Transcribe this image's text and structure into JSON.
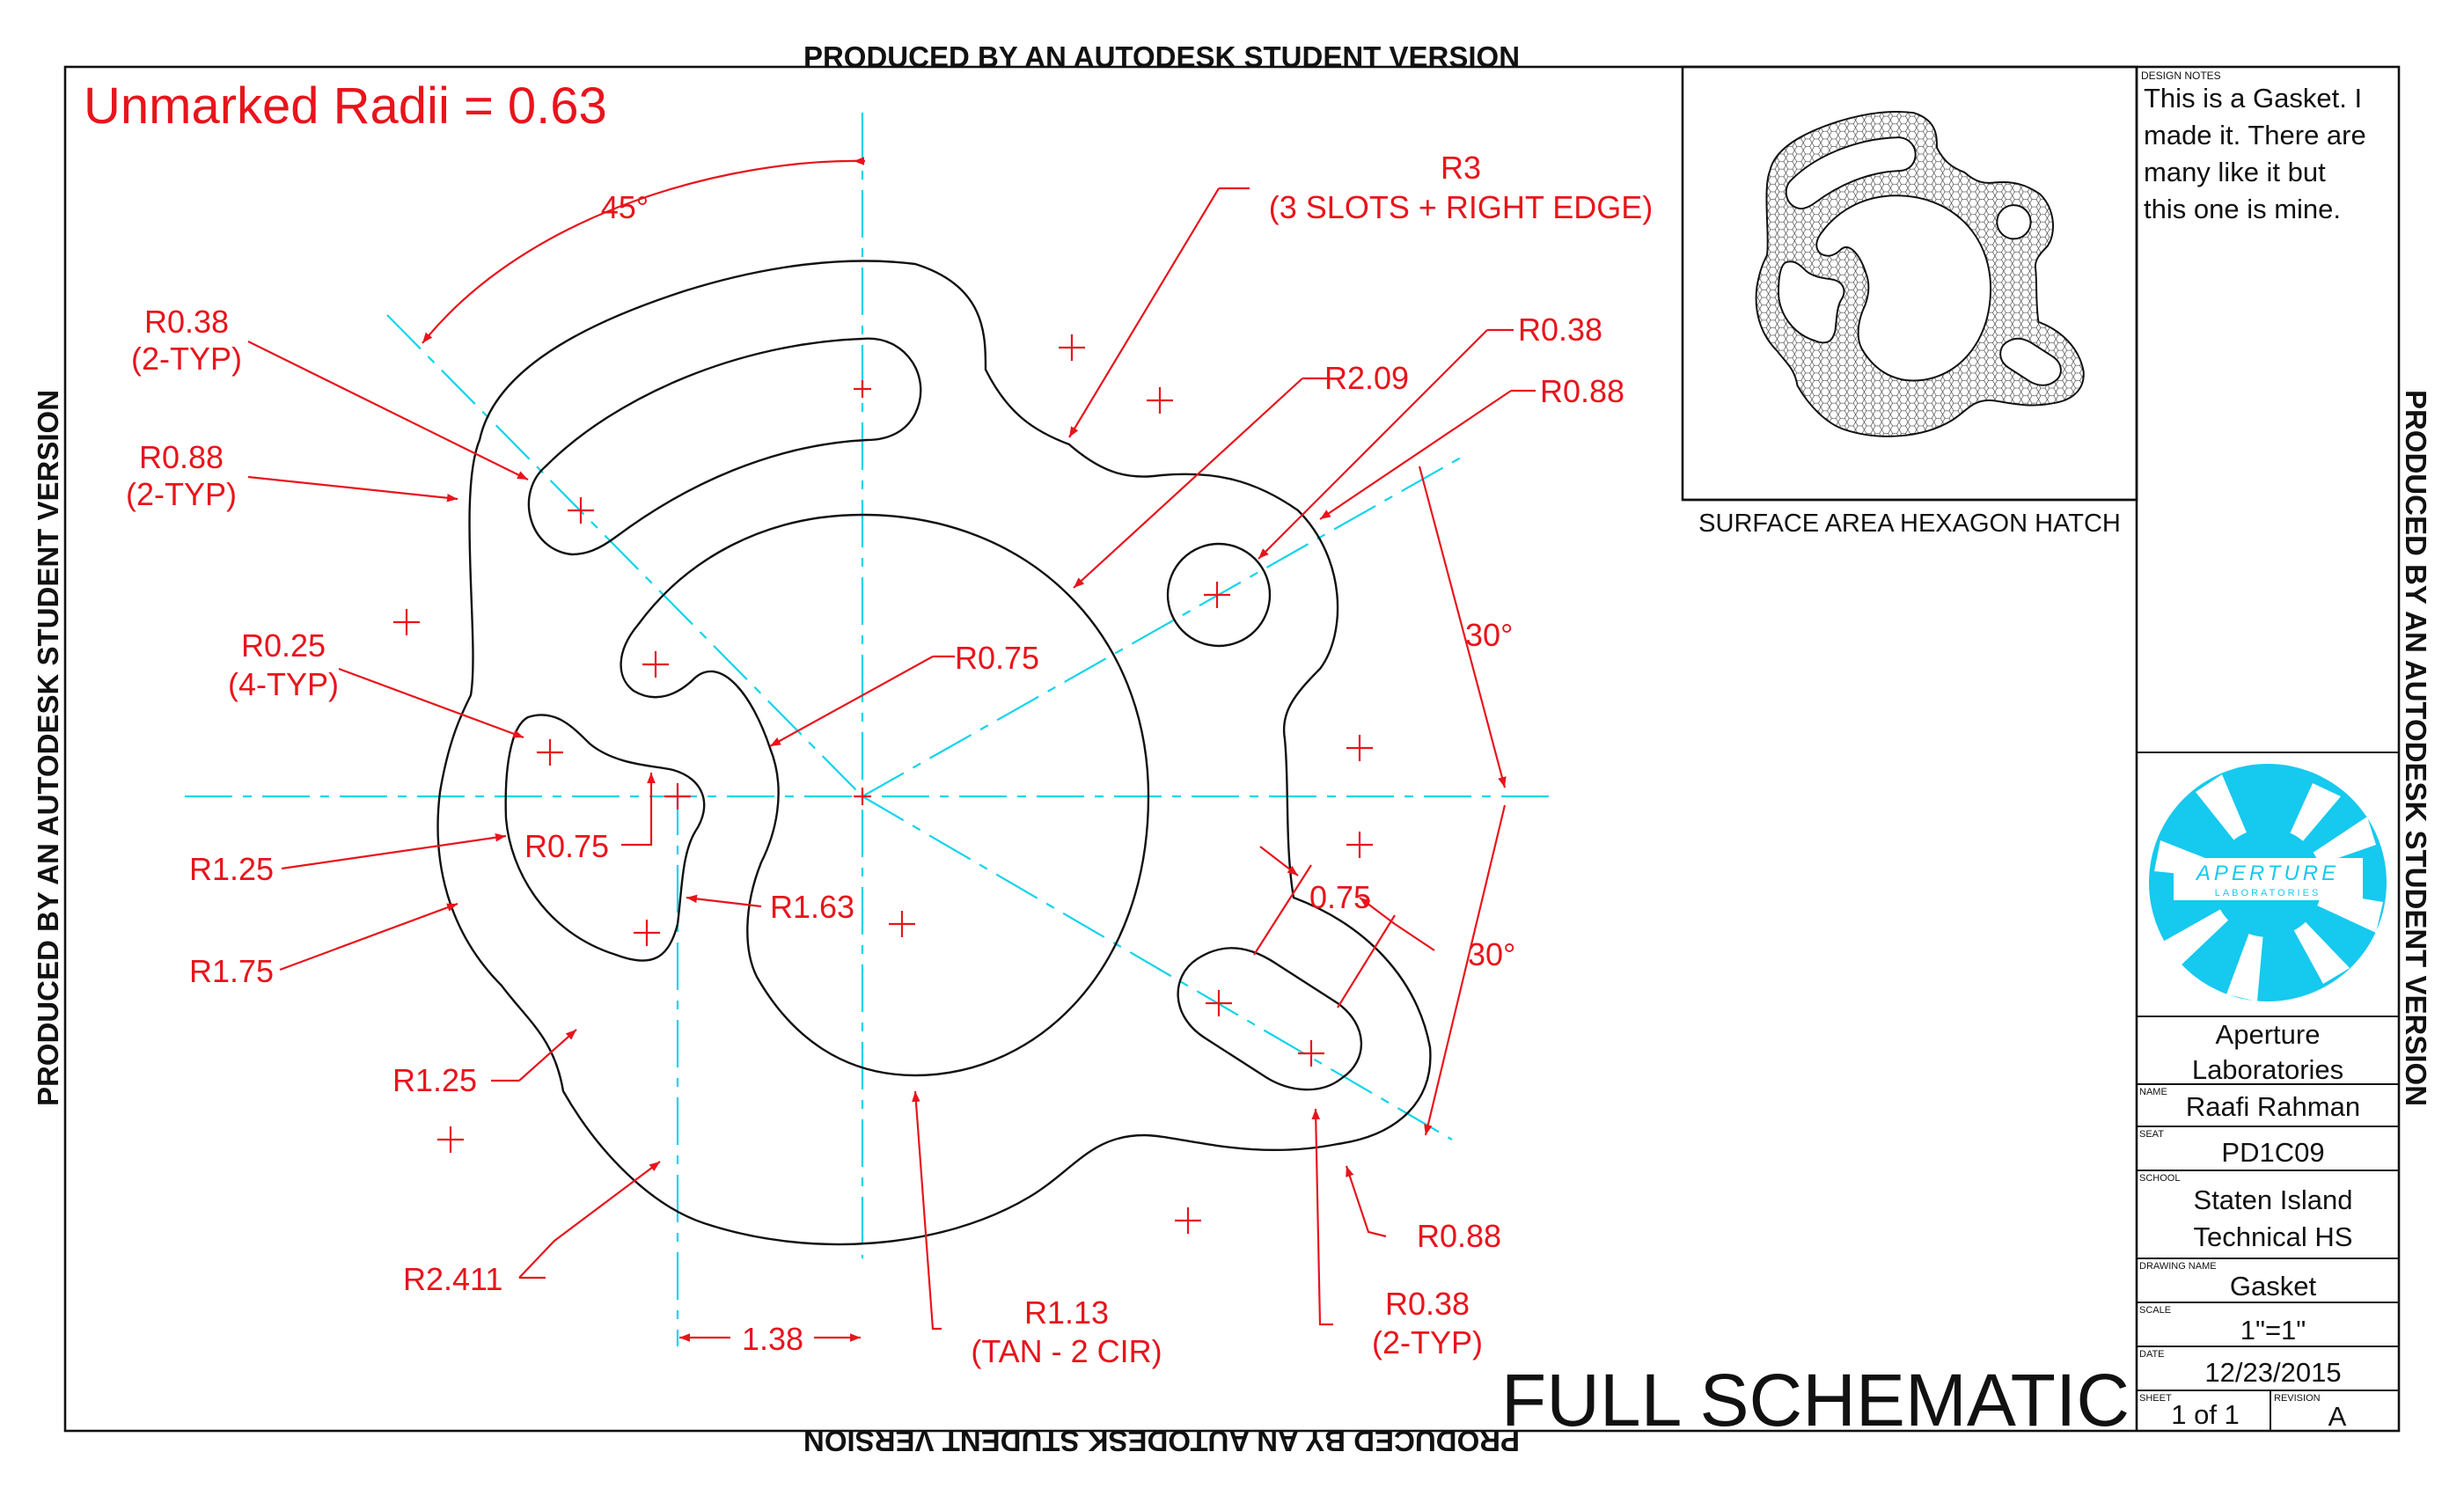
{
  "watermark": {
    "top": "PRODUCED BY AN AUTODESK STUDENT VERSION",
    "bottom": "PRODUCED BY AN AUTODESK STUDENT VERSION",
    "left": "PRODUCED BY AN AUTODESK STUDENT VERSION",
    "right": "PRODUCED BY AN AUTODESK STUDENT VERSION"
  },
  "drawing": {
    "note_unmarked": "Unmarked Radii = 0.63",
    "view_title": "FULL SCHEMATIC",
    "dims": {
      "angle_45": "45°",
      "r3_a": "R3",
      "r3_b": "(3 SLOTS + RIGHT EDGE)",
      "r038_2typ_a": "R0.38",
      "r038_2typ_b": "(2-TYP)",
      "r088_2typ_a": "R0.88",
      "r088_2typ_b": "(2-TYP)",
      "r025_4typ_a": "R0.25",
      "r025_4typ_b": "(4-TYP)",
      "r075_top": "R0.75",
      "r075_left": "R0.75",
      "r209": "R2.09",
      "r038_right": "R0.38",
      "r088_right": "R0.88",
      "angle_30_top": "30°",
      "angle_30_bottom": "30°",
      "len_075": "0.75",
      "r125_left": "R1.25",
      "r175": "R1.75",
      "r163": "R1.63",
      "r125_bottom": "R1.25",
      "r2411": "R2.411",
      "len_138": "1.38",
      "r113_a": "R1.13",
      "r113_b": "(TAN - 2 CIR)",
      "r038_slot_a": "R0.38",
      "r038_slot_b": "(2-TYP)",
      "r088_bottom": "R0.88"
    }
  },
  "preview": {
    "caption": "SURFACE AREA HEXAGON HATCH"
  },
  "title_block": {
    "design_notes_label": "DESIGN NOTES",
    "design_notes": [
      "This is a Gasket. I",
      "made it. There are",
      "many like it but",
      "this one is mine."
    ],
    "logo_word": "APERTURE",
    "logo_sub": "LABORATORIES",
    "company": [
      "Aperture",
      "Laboratories"
    ],
    "name_label": "NAME",
    "name": "Raafi Rahman",
    "seat_label": "SEAT",
    "seat": "PD1C09",
    "school_label": "SCHOOL",
    "school": [
      "Staten Island",
      "Technical HS"
    ],
    "drawing_name_label": "DRAWING NAME",
    "drawing_name": "Gasket",
    "scale_label": "SCALE",
    "scale": "1\"=1\"",
    "date_label": "DATE",
    "date": "12/23/2015",
    "sheet_label": "SHEET",
    "sheet": "1 of 1",
    "revision_label": "REVISION",
    "revision": "A"
  },
  "colors": {
    "dimension": "#e8141c",
    "centerline": "#11d4ea",
    "geometry": "#111111",
    "logo": "#16c9ee"
  }
}
